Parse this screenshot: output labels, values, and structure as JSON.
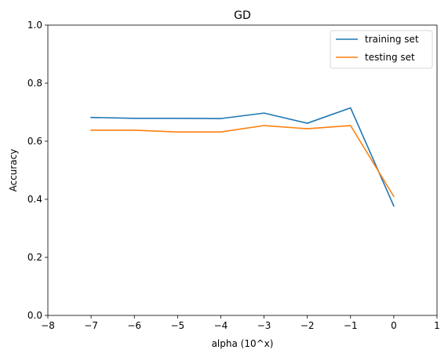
{
  "chart_data": {
    "type": "line",
    "title": "GD",
    "xlabel": "alpha (10^x)",
    "ylabel": "Accuracy",
    "xlim": [
      -8,
      1
    ],
    "ylim": [
      0.0,
      1.0
    ],
    "x_ticks": [
      -8,
      -7,
      -6,
      -5,
      -4,
      -3,
      -2,
      -1,
      0,
      1
    ],
    "x_tick_labels": [
      "−8",
      "−7",
      "−6",
      "−5",
      "−4",
      "−3",
      "−2",
      "−1",
      "0",
      "1"
    ],
    "y_ticks": [
      0.0,
      0.2,
      0.4,
      0.6,
      0.8,
      1.0
    ],
    "y_tick_labels": [
      "0.0",
      "0.2",
      "0.4",
      "0.6",
      "0.8",
      "1.0"
    ],
    "x": [
      -7,
      -6,
      -5,
      -4,
      -3,
      -2,
      -1,
      0
    ],
    "series": [
      {
        "name": "training set",
        "color": "#1f77b4",
        "values": [
          0.682,
          0.679,
          0.679,
          0.678,
          0.697,
          0.662,
          0.715,
          0.377
        ]
      },
      {
        "name": "testing set",
        "color": "#ff7f0e",
        "values": [
          0.638,
          0.638,
          0.632,
          0.632,
          0.654,
          0.643,
          0.654,
          0.41
        ]
      }
    ],
    "grid": false,
    "legend_position": "top-right"
  }
}
